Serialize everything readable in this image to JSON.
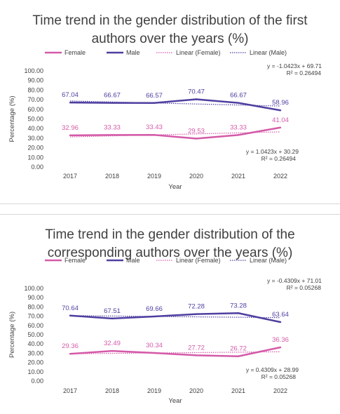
{
  "chart_data": [
    {
      "type": "line",
      "title_lines": [
        "Time trend in the gender distribution of the first",
        "authors over the years (%)"
      ],
      "xlabel": "Year",
      "ylabel": "Percentage (%)",
      "categories": [
        "2017",
        "2018",
        "2019",
        "2020",
        "2021",
        "2022"
      ],
      "yticks": [
        "0.00",
        "10.00",
        "20.00",
        "30.00",
        "40.00",
        "50.00",
        "60.00",
        "70.00",
        "80.00",
        "90.00",
        "100.00"
      ],
      "ylim": [
        0,
        100
      ],
      "legend": [
        "Female",
        "Male",
        "Linear (Female)",
        "Linear (Male)"
      ],
      "legend_position": "top",
      "series": [
        {
          "name": "Female",
          "values": [
            32.96,
            33.33,
            33.43,
            29.53,
            33.33,
            41.04
          ],
          "labels": [
            "32.96",
            "33.33",
            "33.43",
            "29.53",
            "33.33",
            "41.04"
          ],
          "color": "#d45aa8"
        },
        {
          "name": "Male",
          "values": [
            67.04,
            66.67,
            66.57,
            70.47,
            66.67,
            58.96
          ],
          "labels": [
            "67.04",
            "66.67",
            "66.57",
            "70.47",
            "66.67",
            "58.96"
          ],
          "color": "#4e3fa0"
        }
      ],
      "trendlines": [
        {
          "name": "Linear (Female)",
          "slope": 1.0423,
          "intercept": 30.29,
          "color": "#d45aa8",
          "equation": "y = 1.0423x + 30.29",
          "r2": "R² = 0.26494"
        },
        {
          "name": "Linear (Male)",
          "slope": -1.0423,
          "intercept": 69.71,
          "color": "#4e3fa0",
          "equation": "y = -1.0423x + 69.71",
          "r2": "R² = 0.26494"
        }
      ],
      "grid": false
    },
    {
      "type": "line",
      "title_lines": [
        "Time trend in the gender distribution of the",
        "corresponding authors over the years (%)"
      ],
      "xlabel": "Year",
      "ylabel": "Percentage (%)",
      "categories": [
        "2017",
        "2018",
        "2019",
        "2020",
        "2021",
        "2022"
      ],
      "yticks": [
        "0.00",
        "10.00",
        "20.00",
        "30.00",
        "40.00",
        "50.00",
        "60.00",
        "70.00",
        "80.00",
        "90.00",
        "100.00"
      ],
      "ylim": [
        0,
        100
      ],
      "legend": [
        "Female",
        "Male",
        "Linear (Female)",
        "Linear (Male)"
      ],
      "legend_position": "top",
      "series": [
        {
          "name": "Female",
          "values": [
            29.36,
            32.49,
            30.34,
            27.72,
            26.72,
            36.36
          ],
          "labels": [
            "29.36",
            "32.49",
            "30.34",
            "27.72",
            "26.72",
            "36.36"
          ],
          "color": "#d45aa8"
        },
        {
          "name": "Male",
          "values": [
            70.64,
            67.51,
            69.66,
            72.28,
            73.28,
            63.64
          ],
          "labels": [
            "70.64",
            "67.51",
            "69.66",
            "72.28",
            "73.28",
            "63.64"
          ],
          "color": "#4e3fa0"
        }
      ],
      "trendlines": [
        {
          "name": "Linear (Female)",
          "slope": 0.4309,
          "intercept": 28.99,
          "color": "#d45aa8",
          "equation": "y = 0.4309x + 28.99",
          "r2": "R² = 0.05268"
        },
        {
          "name": "Linear (Male)",
          "slope": -0.4309,
          "intercept": 71.01,
          "color": "#4e3fa0",
          "equation": "y = -0.4309x + 71.01",
          "r2": "R² = 0.05268"
        }
      ],
      "grid": false
    }
  ]
}
